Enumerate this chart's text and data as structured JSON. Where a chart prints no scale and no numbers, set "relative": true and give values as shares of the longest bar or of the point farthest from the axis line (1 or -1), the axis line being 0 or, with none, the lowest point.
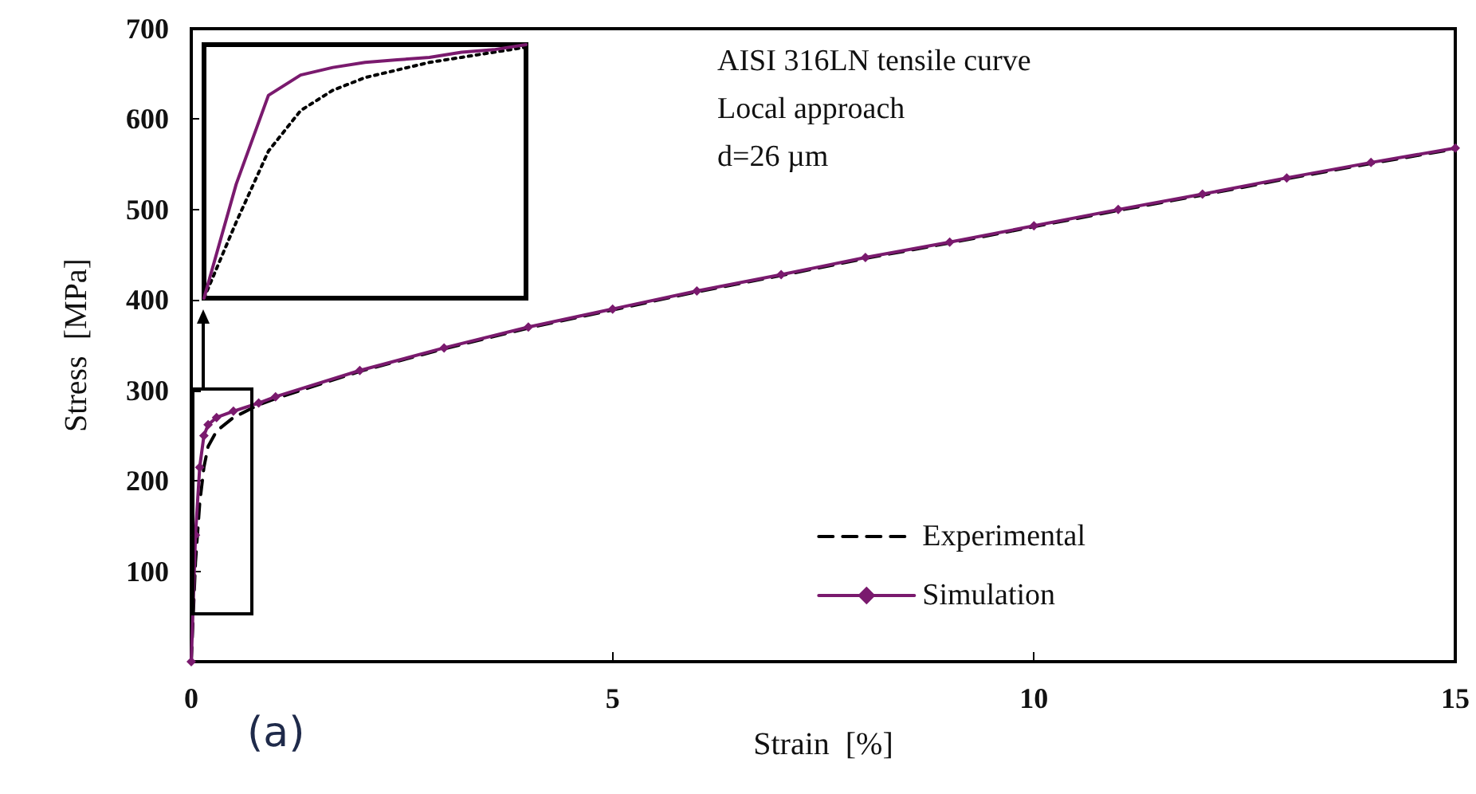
{
  "chart_data": [
    {
      "type": "line",
      "xlabel": "Strain  [%]",
      "ylabel": "Stress  [MPa]",
      "annotations": [
        "AISI 316LN tensile curve",
        "Local approach",
        "d=26 µm",
        "(a)"
      ],
      "x": [
        0,
        0.05,
        0.1,
        0.15,
        0.2,
        0.3,
        0.5,
        0.8,
        1,
        2,
        3,
        4,
        5,
        6,
        7,
        8,
        9,
        10,
        11,
        12,
        13,
        14,
        15
      ],
      "series": [
        {
          "name": "Experimental",
          "color": "#000000",
          "line_style": "dashed",
          "marker": "none",
          "values": [
            0,
            110,
            175,
            215,
            238,
            255,
            270,
            284,
            291,
            321,
            346,
            369,
            389,
            409,
            427,
            446,
            463,
            481,
            499,
            516,
            534,
            551,
            567
          ]
        },
        {
          "name": "Simulation",
          "color": "#7a1a6e",
          "line_style": "solid",
          "marker": "diamond",
          "values": [
            0,
            140,
            215,
            250,
            262,
            270,
            277,
            286,
            293,
            322,
            347,
            370,
            390,
            410,
            428,
            447,
            464,
            482,
            500,
            517,
            535,
            552,
            568
          ]
        }
      ],
      "xlim": [
        0,
        15
      ],
      "xticks": [
        0,
        5,
        10,
        15
      ],
      "ylim": [
        0,
        700
      ],
      "yticks": [
        {
          "value": 0,
          "label": null
        },
        100,
        200,
        300,
        400,
        500,
        600,
        700
      ],
      "grid": false,
      "legend": "bottom right"
    },
    {
      "type": "line",
      "relative": true,
      "legend": false,
      "categories": [
        null,
        null,
        null,
        null,
        null,
        null,
        null,
        null,
        null,
        null,
        null
      ],
      "series": [
        {
          "color": "#000000",
          "line_style": "dotted",
          "marker": "none",
          "values": [
            0,
            0.3,
            0.58,
            0.74,
            0.82,
            0.87,
            0.9,
            0.93,
            0.95,
            0.97,
            0.99
          ]
        },
        {
          "color": "#7a1a6e",
          "line_style": "solid",
          "marker": "none",
          "values": [
            0,
            0.45,
            0.8,
            0.88,
            0.91,
            0.93,
            0.94,
            0.95,
            0.97,
            0.98,
            1
          ]
        }
      ]
    }
  ]
}
